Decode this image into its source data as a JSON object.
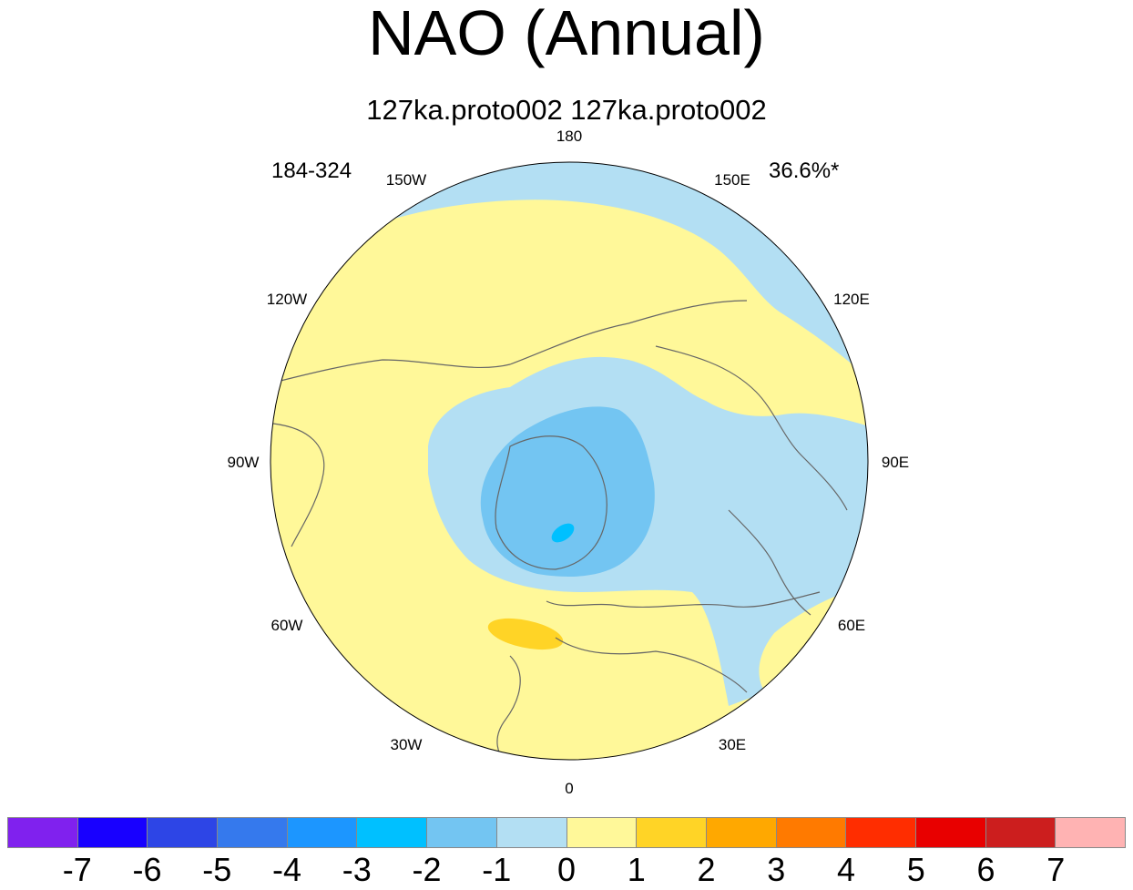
{
  "title": "NAO (Annual)",
  "subtitle": "127ka.proto002  127ka.proto002",
  "years_label": "184-324",
  "variance_label": "36.6%*",
  "map": {
    "projection": "north-polar-stereographic",
    "longitude_labels": [
      {
        "text": "180",
        "lon": 180
      },
      {
        "text": "150E",
        "lon": 150
      },
      {
        "text": "120E",
        "lon": 120
      },
      {
        "text": "90E",
        "lon": 90
      },
      {
        "text": "60E",
        "lon": 60
      },
      {
        "text": "30E",
        "lon": 30
      },
      {
        "text": "0",
        "lon": 0
      },
      {
        "text": "30W",
        "lon": -30
      },
      {
        "text": "60W",
        "lon": -60
      },
      {
        "text": "90W",
        "lon": -90
      },
      {
        "text": "120W",
        "lon": -120
      },
      {
        "text": "150W",
        "lon": -150
      }
    ],
    "ocean_color": "#fff899",
    "land_outline_color": "#666666",
    "anomalies": [
      {
        "region": "Arctic/Greenland",
        "level": "-1 to 0",
        "color": "#b3dff3"
      },
      {
        "region": "Greenland center",
        "level": "-2 to -1",
        "color": "#73c5f2"
      },
      {
        "region": "Greenland east core",
        "level": "-3 to -2",
        "color": "#00c0ff"
      },
      {
        "region": "North Pacific",
        "level": "-1 to 0",
        "color": "#b3dff3"
      },
      {
        "region": "Eurasia",
        "level": "-1 to 0",
        "color": "#b3dff3"
      },
      {
        "region": "Subtropical North Atlantic",
        "level": "1 to 2",
        "color": "#ffd426"
      }
    ]
  },
  "colorbar": {
    "colors": [
      "#8021ee",
      "#1800ff",
      "#2d45e6",
      "#3579ed",
      "#1c96ff",
      "#00c0ff",
      "#73c5f2",
      "#b3dff3",
      "#fff899",
      "#ffd426",
      "#ffa800",
      "#ff7a00",
      "#ff2d00",
      "#e80000",
      "#cc1e1e",
      "#ffb3b3"
    ],
    "labels": [
      "-7",
      "-6",
      "-5",
      "-4",
      "-3",
      "-2",
      "-1",
      "0",
      "1",
      "2",
      "3",
      "4",
      "5",
      "6",
      "7"
    ]
  }
}
